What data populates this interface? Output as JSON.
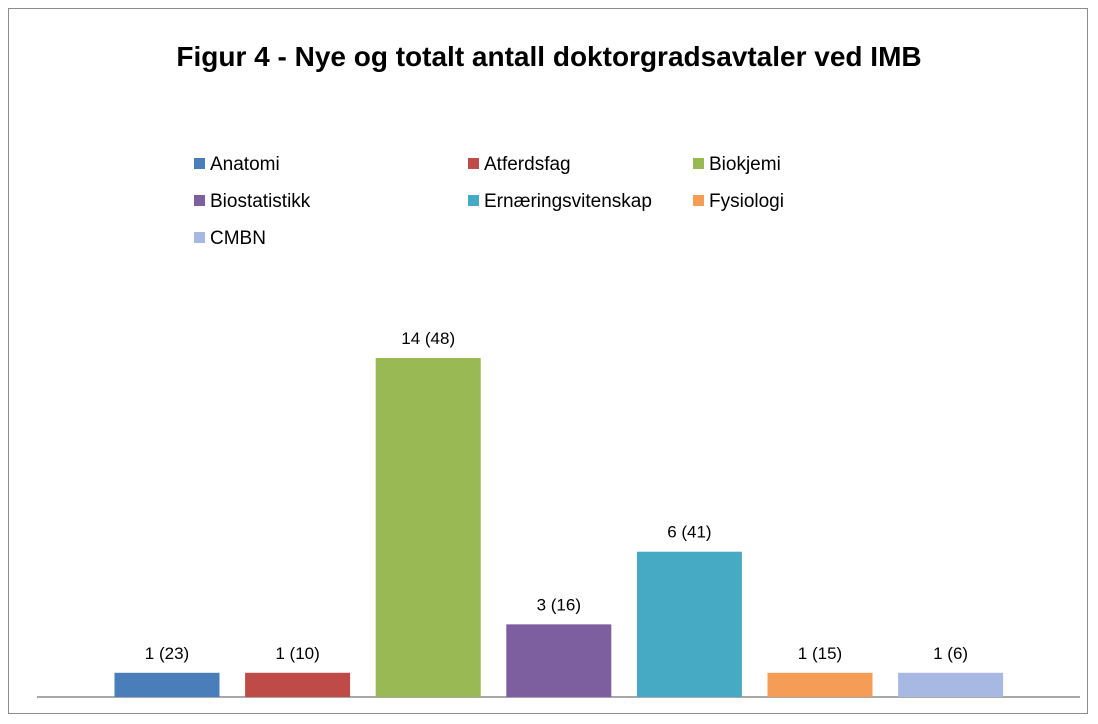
{
  "chart_data": {
    "type": "bar",
    "title": "Figur 4 - Nye og totalt antall doktorgradsavtaler ved IMB",
    "categories": [
      null
    ],
    "series": [
      {
        "name": "Anatomi",
        "color": "#4a7ebb",
        "values": [
          1
        ],
        "value_labels": [
          "1 (23)"
        ]
      },
      {
        "name": "Atferdsfag",
        "color": "#be4b48",
        "values": [
          1
        ],
        "value_labels": [
          "1 (10)"
        ]
      },
      {
        "name": "Biokjemi",
        "color": "#98b954",
        "values": [
          14
        ],
        "value_labels": [
          "14 (48)"
        ]
      },
      {
        "name": "Biostatistikk",
        "color": "#7d5fa0",
        "values": [
          3
        ],
        "value_labels": [
          "3 (16)"
        ]
      },
      {
        "name": "Ernæringsvitenskap",
        "color": "#46aac5",
        "values": [
          6
        ],
        "value_labels": [
          "6 (41)"
        ]
      },
      {
        "name": "Fysiologi",
        "color": "#f59d56",
        "values": [
          1
        ],
        "value_labels": [
          "1 (15)"
        ]
      },
      {
        "name": "CMBN",
        "color": "#a7b9e3",
        "values": [
          1
        ],
        "value_labels": [
          "1 (6)"
        ]
      }
    ],
    "legend": "top"
  }
}
